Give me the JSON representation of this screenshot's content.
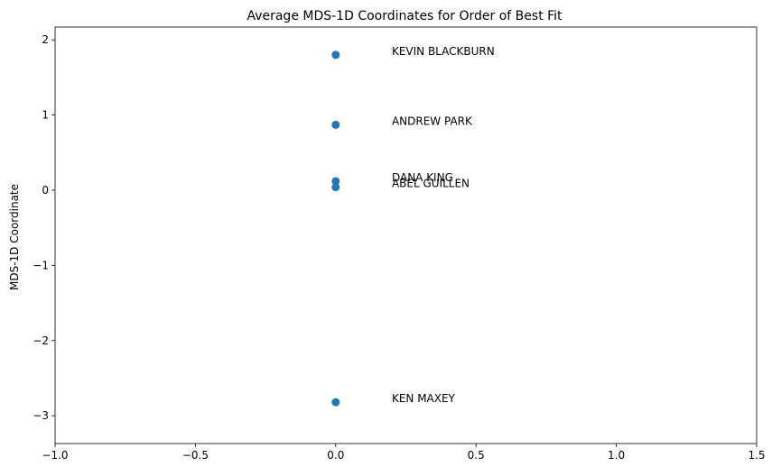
{
  "chart_data": {
    "type": "scatter",
    "title": "Average MDS-1D Coordinates for Order of Best Fit",
    "xlabel": "",
    "ylabel": "MDS-1D Coordinate",
    "xlim": [
      -1.0,
      1.5
    ],
    "ylim": [
      -3.37,
      2.17
    ],
    "xticks": [
      -1.0,
      -0.5,
      0.0,
      0.5,
      1.0,
      1.5
    ],
    "xtick_labels": [
      "−1.0",
      "−0.5",
      "0.0",
      "0.5",
      "1.0",
      "1.5"
    ],
    "yticks": [
      -3,
      -2,
      -1,
      0,
      1,
      2
    ],
    "ytick_labels": [
      "−3",
      "−2",
      "−1",
      "0",
      "1",
      "2"
    ],
    "grid": false,
    "marker_color": "#1f77b4",
    "points": [
      {
        "label": "KEVIN BLACKBURN",
        "x": 0.0,
        "y": 1.8
      },
      {
        "label": "ANDREW PARK",
        "x": 0.0,
        "y": 0.87
      },
      {
        "label": "DANA KING",
        "x": 0.0,
        "y": 0.12
      },
      {
        "label": "ABEL GUILLEN",
        "x": 0.0,
        "y": 0.04
      },
      {
        "label": "KEN MAXEY",
        "x": 0.0,
        "y": -2.82
      }
    ],
    "label_offset_x": 0.2
  }
}
